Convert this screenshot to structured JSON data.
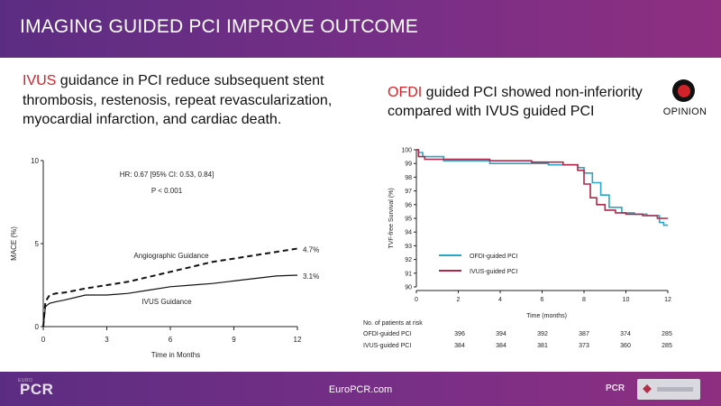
{
  "header": {
    "title": "IMAGING GUIDED PCI IMPROVE OUTCOME"
  },
  "left": {
    "highlight": "IVUS",
    "text": " guidance in PCI reduce subsequent stent thrombosis, restenosis, repeat revascularization, myocardial infarction, and cardiac death."
  },
  "right": {
    "highlight": "OFDI",
    "text": " guided PCI showed non-inferiority compared with IVUS guided PCI"
  },
  "opinion_logo": {
    "label": "OPINION"
  },
  "footer": {
    "url": "EuroPCR.com",
    "logo": "PCR",
    "logo_small": "EURO",
    "logo_right": "PCR"
  },
  "colors": {
    "header": "#6a2e86",
    "highlight": "#d1232a",
    "ofdi": "#2aa6c6",
    "ivus": "#b0284a"
  },
  "chart_data": [
    {
      "type": "line",
      "xlabel": "Time in Months",
      "ylabel": "MACE (%)",
      "xlim": [
        0,
        12
      ],
      "ylim": [
        0,
        10
      ],
      "xticks": [
        "0",
        "3",
        "6",
        "9",
        "12"
      ],
      "yticks": [
        "0",
        "5",
        "10"
      ],
      "annotations": {
        "hr": "HR: 0.67 [95% CI: 0.53, 0.84]",
        "p": "P < 0.001"
      },
      "series": [
        {
          "name": "Angiographic Guidance",
          "end_label": "4.7%",
          "style": "dashed",
          "x": [
            0,
            0.1,
            0.3,
            0.6,
            1,
            2,
            3,
            4,
            5,
            6,
            7,
            8,
            9,
            10,
            11,
            12
          ],
          "y": [
            0,
            1.5,
            1.9,
            2.0,
            2.05,
            2.3,
            2.5,
            2.7,
            3.0,
            3.3,
            3.6,
            3.9,
            4.1,
            4.3,
            4.5,
            4.7
          ]
        },
        {
          "name": "IVUS Guidance",
          "end_label": "3.1%",
          "style": "solid",
          "x": [
            0,
            0.1,
            0.3,
            0.6,
            1,
            2,
            3,
            4,
            5,
            6,
            7,
            8,
            9,
            10,
            11,
            12
          ],
          "y": [
            0,
            1.2,
            1.4,
            1.5,
            1.6,
            1.9,
            1.9,
            2.0,
            2.2,
            2.4,
            2.5,
            2.6,
            2.75,
            2.9,
            3.05,
            3.1
          ]
        }
      ]
    },
    {
      "type": "line",
      "xlabel": "Time (months)",
      "ylabel": "TVF-free Survival (%)",
      "xlim": [
        0,
        12
      ],
      "ylim": [
        90,
        100
      ],
      "xticks": [
        "0",
        "2",
        "4",
        "6",
        "8",
        "10",
        "12"
      ],
      "yticks": [
        "90",
        "91",
        "92",
        "93",
        "94",
        "95",
        "96",
        "97",
        "98",
        "99",
        "100"
      ],
      "legend_position": "lower-left",
      "series": [
        {
          "name": "OFDI-guided PCI",
          "color": "#2aa6c6",
          "x": [
            0,
            0.1,
            0.3,
            1.0,
            1.3,
            3.5,
            6.3,
            7.7,
            8.0,
            8.4,
            8.8,
            9.2,
            9.8,
            10.4,
            11.0,
            11.6,
            11.8,
            12
          ],
          "y": [
            100,
            99.8,
            99.5,
            99.5,
            99.2,
            99.0,
            98.9,
            98.7,
            98.3,
            97.6,
            96.7,
            95.8,
            95.4,
            95.3,
            95.2,
            94.7,
            94.5,
            94.5
          ]
        },
        {
          "name": "IVUS-guided PCI",
          "color": "#b0284a",
          "x": [
            0,
            0.1,
            0.4,
            1.0,
            3.5,
            5.5,
            7.0,
            7.7,
            8.0,
            8.3,
            8.6,
            9.0,
            9.5,
            10.0,
            10.8,
            11.5,
            12
          ],
          "y": [
            100,
            99.5,
            99.3,
            99.3,
            99.2,
            99.1,
            98.9,
            98.5,
            97.5,
            96.5,
            96.0,
            95.6,
            95.4,
            95.3,
            95.2,
            95.0,
            95.0
          ]
        }
      ],
      "risk_table": {
        "title": "No. of patients at risk",
        "rows": [
          {
            "label": "OFDI-guided PCI",
            "values": [
              "396",
              "394",
              "392",
              "387",
              "374",
              "285"
            ]
          },
          {
            "label": "IVUS-guided PCI",
            "values": [
              "384",
              "384",
              "381",
              "373",
              "360",
              "285"
            ]
          }
        ]
      }
    }
  ]
}
